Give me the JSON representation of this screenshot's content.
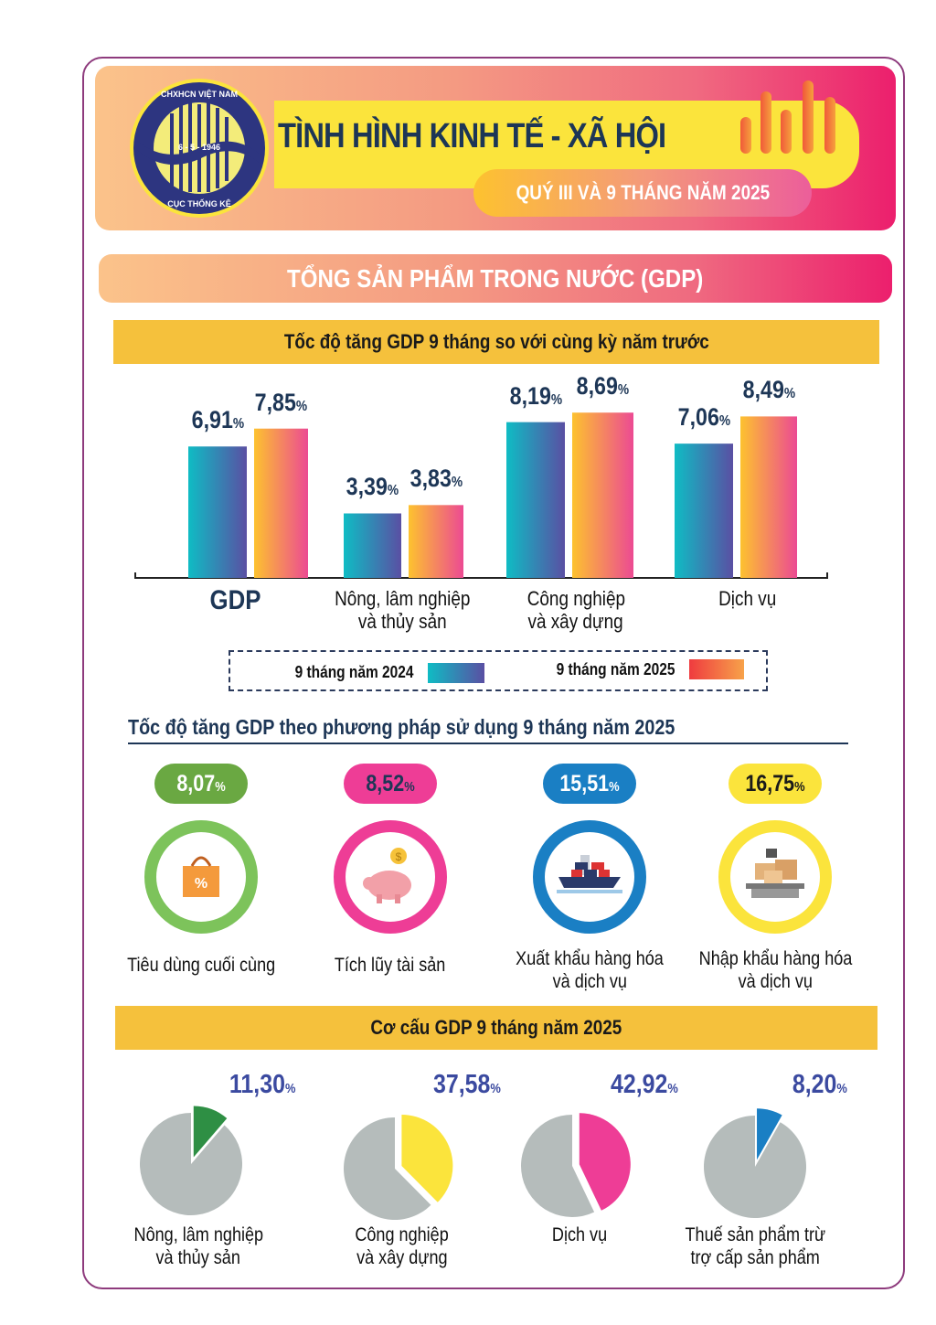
{
  "header": {
    "title": "TÌNH HÌNH KINH TẾ - XÃ HỘI",
    "subtitle": "QUÝ III VÀ 9 THÁNG NĂM 2025",
    "logo_text": [
      "CHXHCN VIỆT NAM",
      "6 - 5 - 1946",
      "CỤC THỐNG KÊ"
    ]
  },
  "section_title": "TỔNG SẢN PHẨM TRONG NƯỚC (GDP)",
  "colors": {
    "series_2024": [
      "#0fbcc4",
      "#5a4fa3"
    ],
    "series_2025": [
      "#fdc22f",
      "#ec4a93"
    ],
    "accent_yellow": "#f5c13c",
    "navy": "#1d3656"
  },
  "chart_data": [
    {
      "type": "bar",
      "title": "Tốc độ tăng GDP 9 tháng so với cùng kỳ năm trước",
      "categories": [
        "GDP",
        "Nông, lâm nghiệp\nvà thủy sản",
        "Công nghiệp\nvà xây dựng",
        "Dịch vụ"
      ],
      "category_lines": [
        [
          "GDP"
        ],
        [
          "Nông, lâm nghiệp",
          "và thủy sản"
        ],
        [
          "Công nghiệp",
          "và xây dựng"
        ],
        [
          "Dịch vụ"
        ]
      ],
      "series": [
        {
          "name": "9 tháng năm 2024",
          "values": [
            6.91,
            3.39,
            8.19,
            7.06
          ],
          "labels": [
            "6,91",
            "3,39",
            "8,19",
            "7,06"
          ]
        },
        {
          "name": "9 tháng năm 2025",
          "values": [
            7.85,
            3.83,
            8.69,
            8.49
          ],
          "labels": [
            "7,85",
            "3,83",
            "8,69",
            "8,49"
          ]
        }
      ],
      "unit": "%",
      "ylim": [
        0,
        10
      ],
      "legend_position": "bottom",
      "grid": false
    },
    {
      "type": "pie",
      "title": "Cơ cấu GDP 9 tháng năm 2025",
      "slices": [
        {
          "label_lines": [
            "Nông, lâm nghiệp",
            "và thủy sản"
          ],
          "value": 11.3,
          "text": "11,30",
          "color": "#2e8f44"
        },
        {
          "label_lines": [
            "Công nghiệp",
            "và xây dựng"
          ],
          "value": 37.58,
          "text": "37,58",
          "color": "#fbe43c"
        },
        {
          "label_lines": [
            "Dịch vụ"
          ],
          "value": 42.92,
          "text": "42,92",
          "color": "#ee3d96"
        },
        {
          "label_lines": [
            "Thuế sản phẩm trừ",
            "trợ cấp sản phẩm"
          ],
          "value": 8.2,
          "text": "8,20",
          "color": "#1a7fc4"
        }
      ],
      "unit": "%",
      "remainder_color": "#b5bcbb"
    }
  ],
  "usage": {
    "title": "Tốc độ tăng GDP theo phương pháp sử dụng 9 tháng năm 2025",
    "items": [
      {
        "value": "8,07",
        "unit": "%",
        "label_lines": [
          "Tiêu dùng cuối cùng"
        ],
        "icon": "shopping-bag-icon",
        "color": "#6aa842",
        "ring": "#7dc35b",
        "text_color": "#ffffff"
      },
      {
        "value": "8,52",
        "unit": "%",
        "label_lines": [
          "Tích lũy tài sản"
        ],
        "icon": "piggy-bank-icon",
        "color": "#ee3d96",
        "ring": "#ee3d96",
        "text_color": "#1d3656"
      },
      {
        "value": "15,51",
        "unit": "%",
        "label_lines": [
          "Xuất khẩu hàng hóa",
          "và dịch vụ"
        ],
        "icon": "cargo-ship-icon",
        "color": "#1a7fc4",
        "ring": "#1a7fc4",
        "text_color": "#ffffff"
      },
      {
        "value": "16,75",
        "unit": "%",
        "label_lines": [
          "Nhập khẩu hàng hóa",
          "và dịch vụ"
        ],
        "icon": "boxes-scale-icon",
        "color": "#fbe43c",
        "ring": "#fbe43c",
        "text_color": "#1a1a1a"
      }
    ]
  }
}
